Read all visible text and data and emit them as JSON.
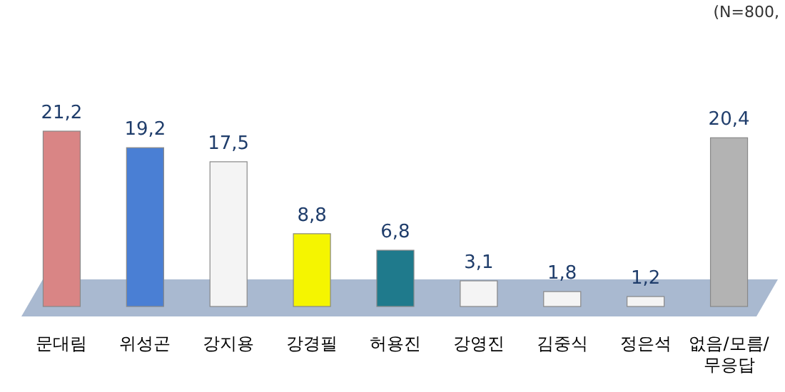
{
  "chart_data": {
    "type": "bar",
    "categories": [
      "문대림",
      "위성곤",
      "강지용",
      "강경필",
      "허용진",
      "강영진",
      "김중식",
      "정은석",
      "없음/모름/무응답"
    ],
    "values": [
      21.2,
      19.2,
      17.5,
      8.8,
      6.8,
      3.1,
      1.8,
      1.2,
      20.4
    ],
    "value_labels": [
      "21,2",
      "19,2",
      "17,5",
      "8,8",
      "6,8",
      "3,1",
      "1,8",
      "1,2",
      "20,4"
    ],
    "colors": [
      "#d98585",
      "#4a7fd4",
      "#f4f4f4",
      "#f5f500",
      "#1f7a8c",
      "#f4f4f4",
      "#f4f4f4",
      "#f4f4f4",
      "#b3b3b3"
    ],
    "annotations": [
      "(N=800,"
    ]
  }
}
